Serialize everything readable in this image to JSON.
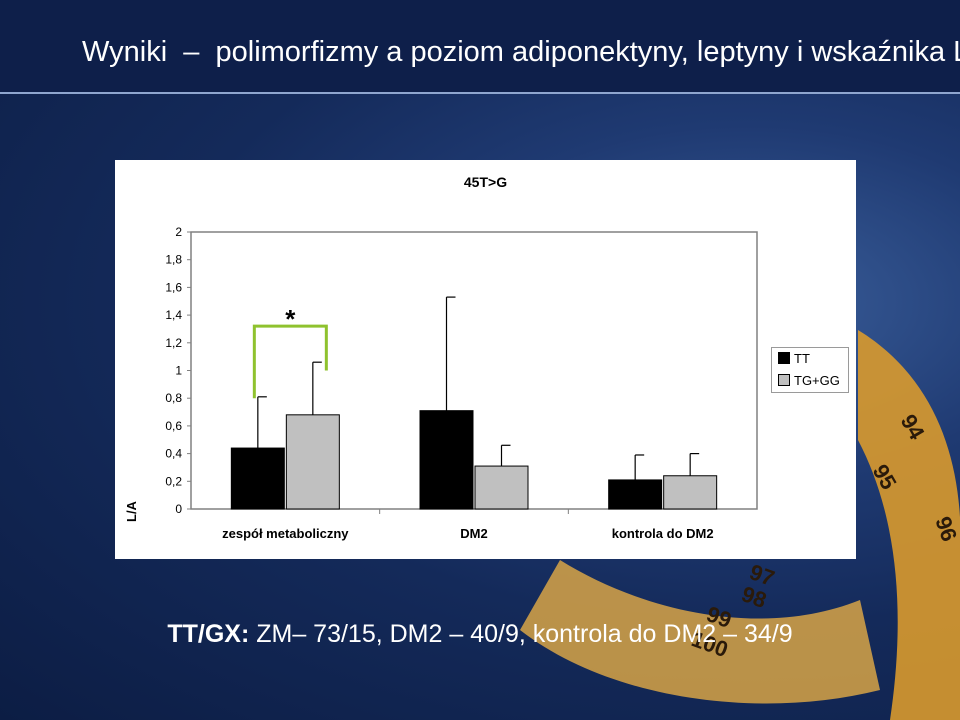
{
  "slide": {
    "title": "Wyniki  –  polimorfizmy a poziom adiponektyny, leptyny i wskaźnika L/A",
    "footer_bold": "TT/GX:",
    "footer_text": " ZM– 73/15, DM2 – 40/9, kontrola do DM2 – 34/9",
    "tape_numbers": [
      "94",
      "95",
      "96",
      "97",
      "98",
      "99",
      "100"
    ]
  },
  "chart_data": {
    "type": "bar",
    "title": "45T>G",
    "ylabel": "L/A",
    "xlabel": "",
    "ylim": [
      0,
      2
    ],
    "yticks": [
      "0",
      "0,2",
      "0,4",
      "0,6",
      "0,8",
      "1",
      "1,2",
      "1,4",
      "1,6",
      "1,8",
      "2"
    ],
    "categories": [
      "zespół metaboliczny",
      "DM2",
      "kontrola do DM2"
    ],
    "series": [
      {
        "name": "TT",
        "values": [
          0.44,
          0.71,
          0.21
        ],
        "errors": [
          0.37,
          0.82,
          0.18
        ],
        "color": "#000000"
      },
      {
        "name": "TG+GG",
        "values": [
          0.68,
          0.31,
          0.24
        ],
        "errors": [
          0.38,
          0.15,
          0.16
        ],
        "color": "#c0c0c0"
      }
    ],
    "annotations": [
      {
        "text": "*",
        "category": "zespół metaboliczny"
      }
    ],
    "legend_position": "right",
    "grid": false
  }
}
